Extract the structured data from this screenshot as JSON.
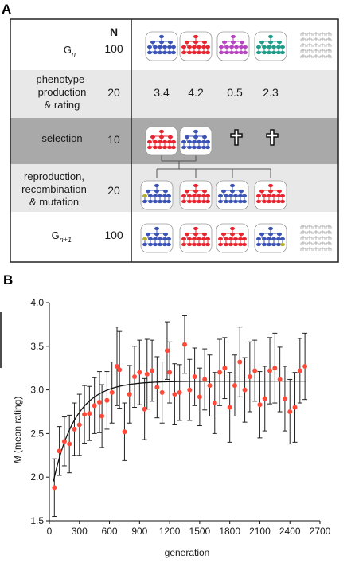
{
  "panel_a": {
    "label": "A",
    "column_header": "N",
    "rows": [
      {
        "label_lines": [
          "G",
          "n"
        ],
        "n": "100"
      },
      {
        "label_lines": [
          "phenotype-",
          "production",
          "& rating"
        ],
        "n": "20",
        "ratings": [
          "3.4",
          "4.2",
          "0.5",
          "2.3"
        ]
      },
      {
        "label_lines": [
          "selection"
        ],
        "n": "10"
      },
      {
        "label_lines": [
          "reproduction,",
          "recombination",
          "& mutation"
        ],
        "n": "20"
      },
      {
        "label_lines": [
          "G",
          "n+1"
        ],
        "n": "100"
      }
    ],
    "colors": {
      "blue": "#3a53b5",
      "red": "#e8242e",
      "magenta": "#b545c0",
      "teal": "#1f9d8a",
      "olive": "#b8ad2a",
      "row_light": "#e8e8e8",
      "row_dark": "#a9a9a9"
    },
    "icons": [
      "genome-tree-icon",
      "cross-icon"
    ]
  },
  "panel_b": {
    "label": "B",
    "chart_data": {
      "type": "scatter",
      "xlabel": "generation",
      "ylabel_var": "M",
      "ylabel_rest": "(mean rating)",
      "xlim": [
        0,
        2700
      ],
      "ylim": [
        1.5,
        4.0
      ],
      "xticks": [
        "0",
        "300",
        "600",
        "900",
        "1200",
        "1500",
        "1800",
        "2100",
        "2400",
        "2700"
      ],
      "yticks": [
        "1.5",
        "2.0",
        "2.5",
        "3.0",
        "3.5",
        "4.0"
      ],
      "marker_color": "#ff4a3a",
      "points": [
        [
          50,
          1.88,
          0.33
        ],
        [
          100,
          2.3,
          0.28
        ],
        [
          150,
          2.41,
          0.28
        ],
        [
          200,
          2.38,
          0.33
        ],
        [
          250,
          2.55,
          0.3
        ],
        [
          300,
          2.6,
          0.35
        ],
        [
          350,
          2.72,
          0.33
        ],
        [
          400,
          2.73,
          0.31
        ],
        [
          450,
          2.82,
          0.32
        ],
        [
          500,
          2.86,
          0.35
        ],
        [
          525,
          2.7,
          0.36
        ],
        [
          575,
          2.88,
          0.33
        ],
        [
          625,
          2.97,
          0.35
        ],
        [
          675,
          3.27,
          0.45
        ],
        [
          700,
          3.23,
          0.44
        ],
        [
          750,
          2.52,
          0.33
        ],
        [
          800,
          2.95,
          0.33
        ],
        [
          850,
          3.15,
          0.35
        ],
        [
          900,
          3.2,
          0.37
        ],
        [
          950,
          2.78,
          0.35
        ],
        [
          975,
          3.18,
          0.4
        ],
        [
          1025,
          3.22,
          0.35
        ],
        [
          1075,
          3.03,
          0.35
        ],
        [
          1125,
          2.97,
          0.35
        ],
        [
          1175,
          3.45,
          0.33
        ],
        [
          1200,
          3.2,
          0.35
        ],
        [
          1250,
          2.95,
          0.35
        ],
        [
          1300,
          2.97,
          0.32
        ],
        [
          1350,
          3.52,
          0.33
        ],
        [
          1400,
          3.0,
          0.35
        ],
        [
          1450,
          3.15,
          0.33
        ],
        [
          1500,
          2.92,
          0.33
        ],
        [
          1550,
          3.12,
          0.35
        ],
        [
          1600,
          3.05,
          0.35
        ],
        [
          1650,
          2.85,
          0.35
        ],
        [
          1700,
          3.2,
          0.38
        ],
        [
          1750,
          3.25,
          0.35
        ],
        [
          1800,
          2.8,
          0.4
        ],
        [
          1850,
          3.05,
          0.35
        ],
        [
          1900,
          3.32,
          0.4
        ],
        [
          1950,
          3.0,
          0.37
        ],
        [
          2000,
          3.15,
          0.4
        ],
        [
          2050,
          3.22,
          0.35
        ],
        [
          2100,
          2.83,
          0.38
        ],
        [
          2150,
          2.9,
          0.37
        ],
        [
          2200,
          3.22,
          0.38
        ],
        [
          2250,
          3.25,
          0.4
        ],
        [
          2300,
          3.12,
          0.37
        ],
        [
          2350,
          2.9,
          0.37
        ],
        [
          2400,
          2.75,
          0.37
        ],
        [
          2450,
          2.8,
          0.4
        ],
        [
          2500,
          3.22,
          0.37
        ],
        [
          2550,
          3.27,
          0.38
        ]
      ],
      "fit": {
        "model": "saturating exponential",
        "y0": 1.95,
        "asymptote": 3.1,
        "rate_per_gen": 0.0045
      }
    }
  }
}
